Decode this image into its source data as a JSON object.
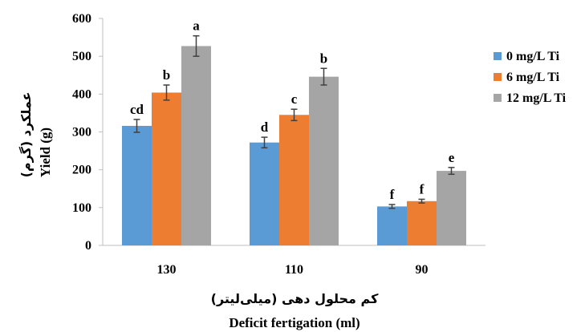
{
  "chart_data": {
    "type": "bar",
    "categories": [
      "130",
      "110",
      "90"
    ],
    "series": [
      {
        "name": "0 mg/L Ti",
        "color": "#5B9BD5",
        "values": [
          316,
          272,
          103
        ],
        "errors": [
          17,
          14,
          5
        ],
        "letters": [
          "cd",
          "d",
          "f"
        ]
      },
      {
        "name": "6 mg/L Ti",
        "color": "#ED7D31",
        "values": [
          404,
          345,
          117
        ],
        "errors": [
          20,
          15,
          5
        ],
        "letters": [
          "b",
          "c",
          "f"
        ]
      },
      {
        "name": "12 mg/L Ti",
        "color": "#A5A5A5",
        "values": [
          527,
          446,
          197
        ],
        "errors": [
          27,
          22,
          9
        ],
        "letters": [
          "a",
          "b",
          "e"
        ]
      }
    ],
    "xlabel": "Deficit fertigation (ml)",
    "xlabel_fa": "کم محلول دهی (میلی‌لیتر)",
    "ylabel": "Yield (g)",
    "ylabel_fa": "عملکرد (گرم)",
    "ylim": [
      0,
      600
    ],
    "yticks": [
      0,
      100,
      200,
      300,
      400,
      500,
      600
    ],
    "grid": false,
    "legend_position": "right",
    "error_bar_color": "#404040",
    "axis_color": "#bfbfbf"
  }
}
